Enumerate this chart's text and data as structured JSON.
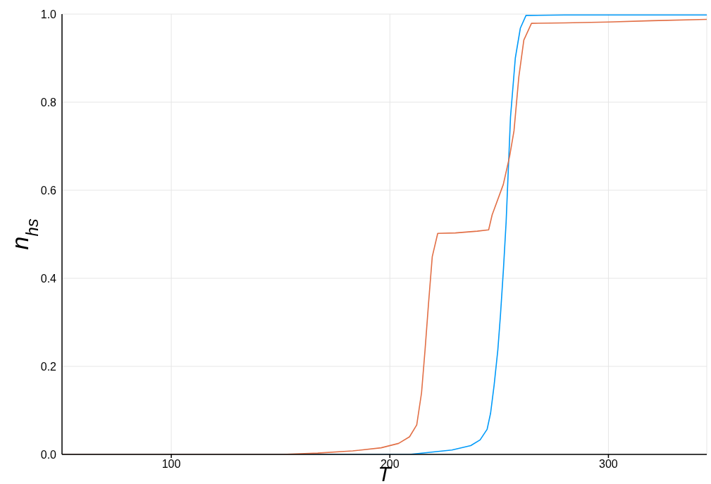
{
  "chart_data": {
    "type": "line",
    "xlabel": "T",
    "ylabel": "n$_{hs}$",
    "xlim": [
      50,
      345
    ],
    "xticks": [
      100,
      200,
      300
    ],
    "ylim": [
      0,
      1
    ],
    "yticks": [
      {
        "value": 0,
        "label": "0.0"
      },
      {
        "value": 0.2,
        "label": "0.2"
      },
      {
        "value": 0.4,
        "label": "0.4"
      },
      {
        "value": 0.6,
        "label": "0.6"
      },
      {
        "value": 0.8,
        "label": "0.8"
      },
      {
        "value": 1,
        "label": "1.0"
      }
    ],
    "grid": true,
    "marker": "none",
    "line_style": "solid",
    "series": [
      {
        "color": "#009af9",
        "x": [
          50,
          150,
          209,
          228.4,
          237,
          241.3,
          244.5,
          246.1,
          247.7,
          249.4,
          250.6,
          252,
          253.2,
          255.2,
          257.4,
          259.7,
          262.3,
          280,
          300,
          320,
          345
        ],
        "values": [
          0,
          0,
          0,
          0.01,
          0.02,
          0.033,
          0.057,
          0.094,
          0.157,
          0.237,
          0.316,
          0.423,
          0.528,
          0.766,
          0.9,
          0.968,
          0.997,
          0.998,
          0.998,
          0.998,
          0.998
        ]
      },
      {
        "color": "#e26f46",
        "x": [
          50,
          151,
          167,
          183,
          196,
          204,
          209,
          212.3,
          214.5,
          216.1,
          217.7,
          219.4,
          221.9,
          230,
          240,
          245.2,
          246.8,
          251.9,
          254.8,
          256.8,
          259,
          261.3,
          264.8,
          280,
          300,
          320,
          345
        ],
        "values": [
          0,
          0,
          0.003,
          0.008,
          0.015,
          0.025,
          0.04,
          0.067,
          0.14,
          0.237,
          0.343,
          0.449,
          0.502,
          0.503,
          0.507,
          0.51,
          0.544,
          0.613,
          0.677,
          0.735,
          0.857,
          0.941,
          0.979,
          0.98,
          0.982,
          0.985,
          0.988
        ]
      }
    ]
  }
}
